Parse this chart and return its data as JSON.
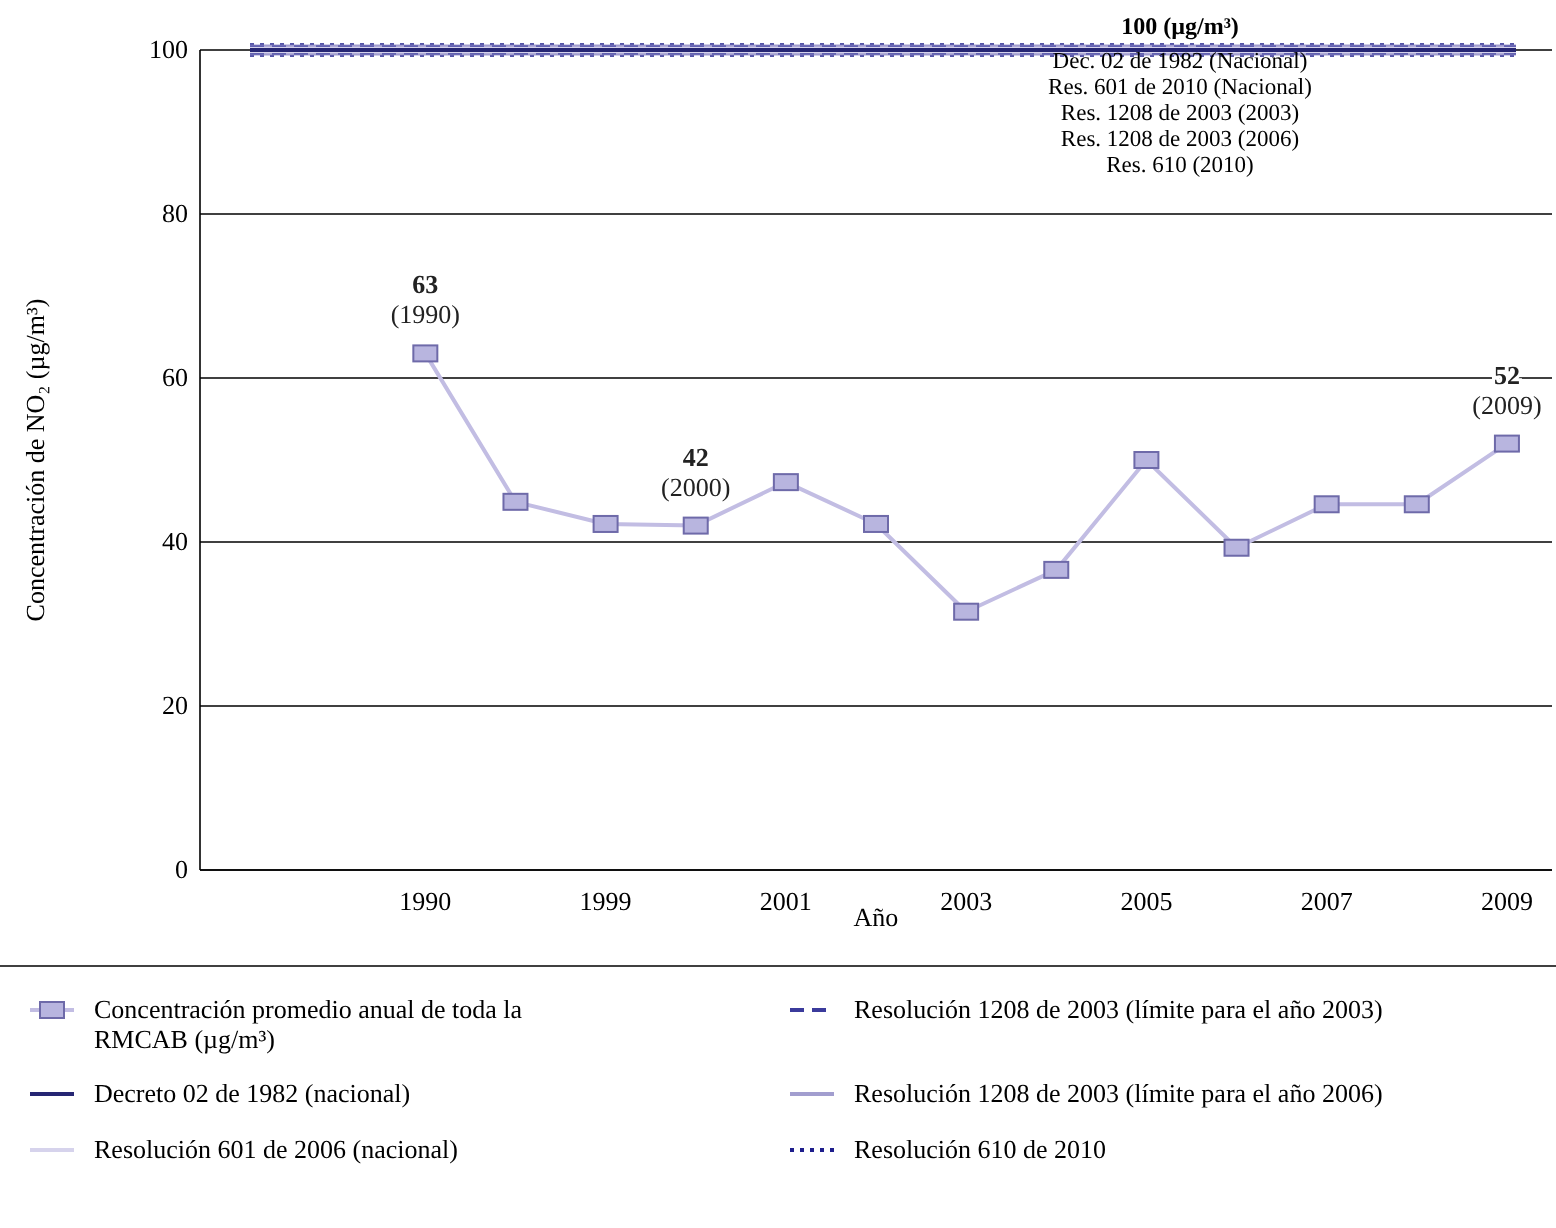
{
  "chart_data": {
    "type": "line",
    "xlabel": "Año",
    "ylabel": "Concentración de NO₂ (µg/m³)",
    "categories": [
      "1990",
      null,
      "1999",
      null,
      "2001",
      null,
      "2003",
      null,
      "2005",
      null,
      "2007",
      null,
      "2009"
    ],
    "series": [
      {
        "name": "Concentración promedio anual de toda la RMCAB (µg/m³)",
        "color": "#c2bde3",
        "values": [
          63,
          44.9,
          42.2,
          42,
          47.3,
          42.2,
          31.5,
          36.6,
          50,
          39.3,
          44.6,
          44.6,
          52
        ],
        "value_labels": [
          "63\n(1990)",
          null,
          null,
          "42\n(2000)",
          null,
          null,
          null,
          null,
          null,
          null,
          null,
          null,
          "52\n(2009)"
        ]
      }
    ],
    "marker": "square",
    "ylim": [
      0,
      100
    ],
    "yticks": [
      0,
      20,
      40,
      60,
      80,
      100
    ],
    "grid": "y",
    "legend": "bottom",
    "ref_lines": [
      {
        "axis": "y",
        "value": 100,
        "label": "Decreto 02 de 1982 (nacional)",
        "color": "#262673",
        "line_style": "solid"
      },
      {
        "axis": "y",
        "value": 100,
        "label": "Resolución 601 de 2006 (nacional)",
        "color": "#d6d3ec",
        "line_style": "solid"
      },
      {
        "axis": "y",
        "value": 100,
        "label": "Resolución 1208 de 2003 (límite para el año 2003)",
        "color": "#3b3b9c",
        "line_style": "dashed"
      },
      {
        "axis": "y",
        "value": 100,
        "label": "Resolución 1208 de 2003 (límite para el año 2006)",
        "color": "#a29ecf",
        "line_style": "solid"
      },
      {
        "axis": "y",
        "value": 100,
        "label": "Resolución 610 de 2010",
        "color": "#1e1e8c",
        "line_style": "dotted"
      }
    ],
    "annotations": [
      "100 (µg/m³)",
      "Dec. 02 de 1982 (Nacional)",
      "Res. 601 de 2010 (Nacional)",
      "Res. 1208 de 2003 (2003)",
      "Res. 1208 de 2003 (2006)",
      "Res. 610 (2010)"
    ]
  }
}
